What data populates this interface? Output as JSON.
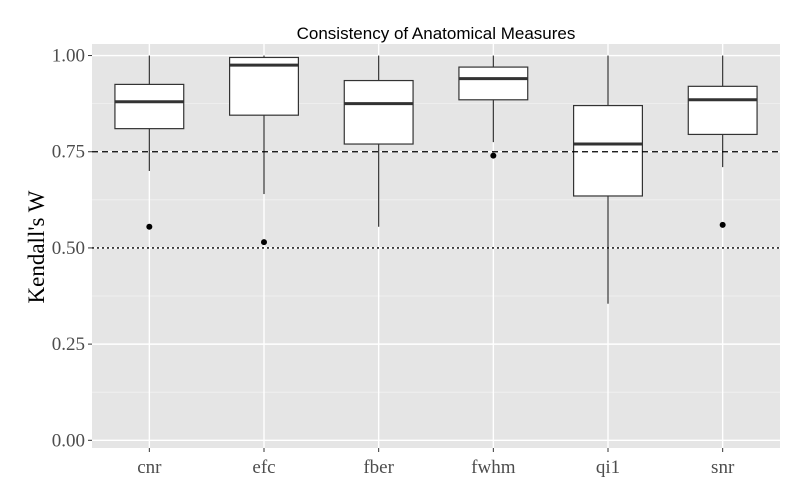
{
  "chart_data": {
    "type": "box",
    "title": "Consistency of Anatomical Measures",
    "xlabel": "",
    "ylabel": "Kendall's W",
    "ylim": [
      -0.02,
      1.03
    ],
    "yticks": [
      "0.00",
      "0.25",
      "0.50",
      "0.75",
      "1.00"
    ],
    "ytick_values": [
      0.0,
      0.25,
      0.5,
      0.75,
      1.0
    ],
    "grid": true,
    "categories": [
      "cnr",
      "efc",
      "fber",
      "fwhm",
      "qi1",
      "snr"
    ],
    "boxes": [
      {
        "category": "cnr",
        "whisker_low": 0.7,
        "q1": 0.81,
        "median": 0.88,
        "q3": 0.925,
        "whisker_high": 1.0,
        "outliers": [
          0.555
        ]
      },
      {
        "category": "efc",
        "whisker_low": 0.64,
        "q1": 0.845,
        "median": 0.975,
        "q3": 0.995,
        "whisker_high": 1.0,
        "outliers": [
          0.515
        ]
      },
      {
        "category": "fber",
        "whisker_low": 0.555,
        "q1": 0.77,
        "median": 0.875,
        "q3": 0.935,
        "whisker_high": 1.0,
        "outliers": []
      },
      {
        "category": "fwhm",
        "whisker_low": 0.775,
        "q1": 0.885,
        "median": 0.94,
        "q3": 0.97,
        "whisker_high": 1.0,
        "outliers": [
          0.74
        ]
      },
      {
        "category": "qi1",
        "whisker_low": 0.355,
        "q1": 0.635,
        "median": 0.77,
        "q3": 0.87,
        "whisker_high": 1.0,
        "outliers": []
      },
      {
        "category": "snr",
        "whisker_low": 0.71,
        "q1": 0.795,
        "median": 0.885,
        "q3": 0.92,
        "whisker_high": 1.0,
        "outliers": [
          0.56
        ]
      }
    ],
    "reference_lines": [
      {
        "y": 0.75,
        "style": "dashed"
      },
      {
        "y": 0.5,
        "style": "dotted"
      }
    ],
    "colors": {
      "panel_background": "#e5e5e5",
      "grid_major": "#ffffff",
      "grid_minor": "#f2f2f2",
      "box_fill": "#ffffff",
      "box_stroke": "#333333",
      "median": "#333333",
      "reference_line": "#000000",
      "outlier": "#000000"
    }
  }
}
